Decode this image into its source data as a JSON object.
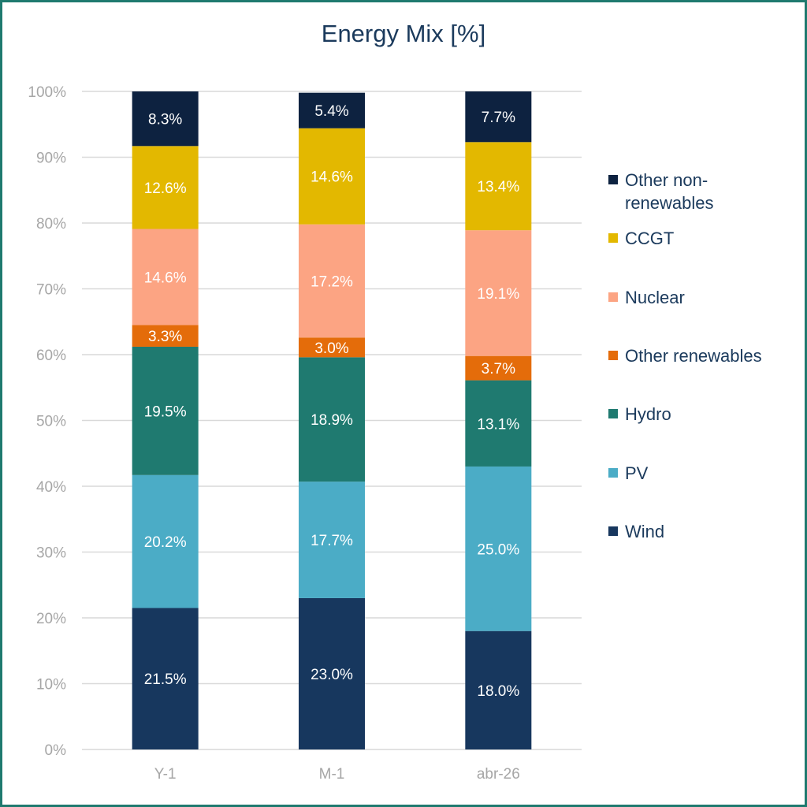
{
  "chart_data": {
    "type": "bar",
    "stacked": true,
    "title": "Energy Mix [%]",
    "categories": [
      "Y-1",
      "M-1",
      "abr-26"
    ],
    "y_ticks": [
      "0%",
      "10%",
      "20%",
      "30%",
      "40%",
      "50%",
      "60%",
      "70%",
      "80%",
      "90%",
      "100%"
    ],
    "ylim": [
      0,
      100
    ],
    "grid": true,
    "legend_position": "right",
    "series": [
      {
        "name": "Wind",
        "color": "#17375e",
        "text_color": "#ffffff",
        "values": [
          21.5,
          23.0,
          18.0
        ],
        "labels": [
          "21.5%",
          "23.0%",
          "18.0%"
        ]
      },
      {
        "name": "PV",
        "color": "#4bacc6",
        "text_color": "#ffffff",
        "values": [
          20.2,
          17.7,
          25.0
        ],
        "labels": [
          "20.2%",
          "17.7%",
          "25.0%"
        ]
      },
      {
        "name": "Hydro",
        "color": "#1f7a70",
        "text_color": "#ffffff",
        "values": [
          19.5,
          18.9,
          13.1
        ],
        "labels": [
          "19.5%",
          "18.9%",
          "13.1%"
        ]
      },
      {
        "name": "Other renewables",
        "color": "#e46c0a",
        "text_color": "#ffffff",
        "values": [
          3.3,
          3.0,
          3.7
        ],
        "labels": [
          "3.3%",
          "3.0%",
          "3.7%"
        ]
      },
      {
        "name": "Nuclear",
        "color": "#fca483",
        "text_color": "#ffffff",
        "values": [
          14.6,
          17.2,
          19.1
        ],
        "labels": [
          "14.6%",
          "17.2%",
          "19.1%"
        ]
      },
      {
        "name": "CCGT",
        "color": "#e3b800",
        "text_color": "#ffffff",
        "values": [
          12.6,
          14.6,
          13.4
        ],
        "labels": [
          "12.6%",
          "14.6%",
          "13.4%"
        ]
      },
      {
        "name": "Other non-renewables",
        "color": "#0d2240",
        "text_color": "#ffffff",
        "values": [
          8.3,
          5.4,
          7.7
        ],
        "labels": [
          "8.3%",
          "5.4%",
          "7.7%"
        ]
      }
    ]
  },
  "legend": {
    "items": [
      "Other non-\nrenewables",
      "CCGT",
      "Nuclear",
      "Other renewables",
      "Hydro",
      "PV",
      "Wind"
    ]
  }
}
